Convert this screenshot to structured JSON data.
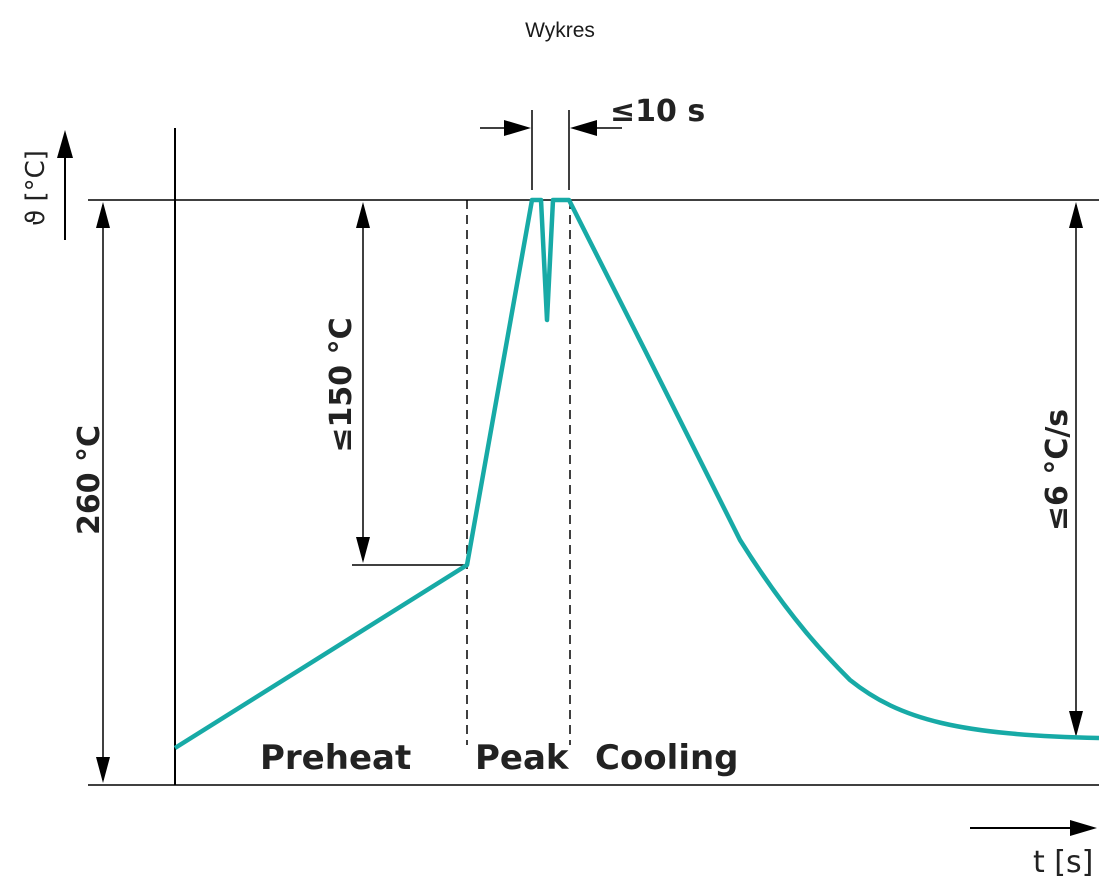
{
  "title": "Wykres",
  "axes": {
    "y_label": "ϑ [°C]",
    "x_label": "t [s]"
  },
  "dimensions": {
    "total_temp": "260 °C",
    "preheat_rise": "≤150 °C",
    "peak_time": "≤10 s",
    "cooling_rate": "≤6 °C/s"
  },
  "phases": [
    "Preheat",
    "Peak",
    "Cooling"
  ],
  "colors": {
    "curve": "#17aaa6",
    "lines": "#000000",
    "text": "#222222"
  }
}
